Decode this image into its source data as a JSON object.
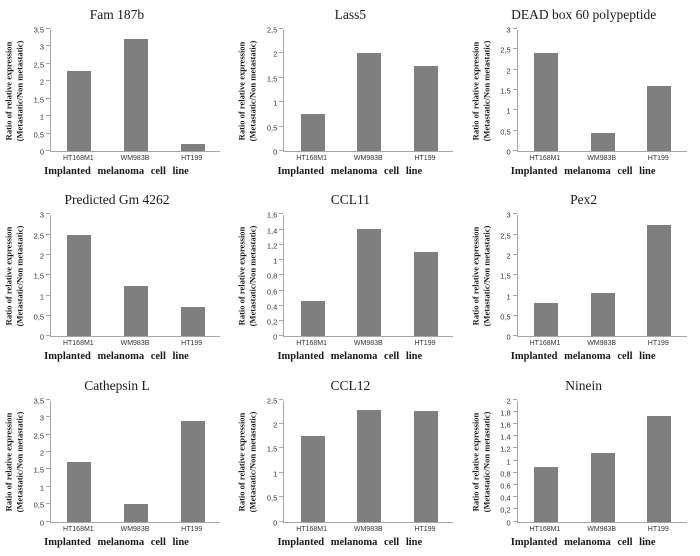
{
  "figure": {
    "layout": "3x3-grid",
    "bar_color": "#7f7f7f",
    "axis_color": "#a6a6a6",
    "decimal_separator": ",",
    "shared_categories": [
      "HT168M1",
      "WM983B",
      "HT199"
    ],
    "shared_xlabel": "Implanted melanoma cell line",
    "shared_ylabel_line1": "Ratio of relative expression",
    "shared_ylabel_line2": "(Metastatic/Non metastatic)"
  },
  "chart_data": [
    {
      "type": "bar",
      "title": "Fam 187b",
      "categories": [
        "HT168M1",
        "WM983B",
        "HT199"
      ],
      "values": [
        2.3,
        3.2,
        0.2
      ],
      "xlabel": "Implanted melanoma cell line",
      "ylabel": "Ratio of relative expression (Metastatic/Non metastatic)",
      "ylim": [
        0,
        3.5
      ],
      "ystep": 0.5,
      "grid": false,
      "legend": "none"
    },
    {
      "type": "bar",
      "title": "Lass5",
      "categories": [
        "HT168M1",
        "WM983B",
        "HT199"
      ],
      "values": [
        0.75,
        2.0,
        1.75
      ],
      "xlabel": "Implanted melanoma cell line",
      "ylabel": "Ratio of relative expression (Metastatic/Non metastatic)",
      "ylim": [
        0,
        2.5
      ],
      "ystep": 0.5,
      "grid": false,
      "legend": "none"
    },
    {
      "type": "bar",
      "title": "DEAD box 60 polypeptide",
      "categories": [
        "HT168M1",
        "WM983B",
        "HT199"
      ],
      "values": [
        2.4,
        0.45,
        1.6
      ],
      "xlabel": "Implanted melanoma cell line",
      "ylabel": "Ratio of relative expression (Metastatic/Non metastatic)",
      "ylim": [
        0,
        3
      ],
      "ystep": 0.5,
      "grid": false,
      "legend": "none"
    },
    {
      "type": "bar",
      "title": "Predicted Gm 4262",
      "categories": [
        "HT168M1",
        "WM983B",
        "HT199"
      ],
      "values": [
        2.5,
        1.25,
        0.72
      ],
      "xlabel": "Implanted melanoma cell line",
      "ylabel": "Ratio of relative expression (Metastatic/Non metastatic)",
      "ylim": [
        0,
        3
      ],
      "ystep": 0.5,
      "grid": false,
      "legend": "none"
    },
    {
      "type": "bar",
      "title": "CCL11",
      "categories": [
        "HT168M1",
        "WM983B",
        "HT199"
      ],
      "values": [
        0.46,
        1.41,
        1.1
      ],
      "xlabel": "Implanted melanoma cell line",
      "ylabel": "Ratio of relative expression (Metastatic/Non metastatic)",
      "ylim": [
        0,
        1.6
      ],
      "ystep": 0.2,
      "grid": false,
      "legend": "none"
    },
    {
      "type": "bar",
      "title": "Pex2",
      "categories": [
        "HT168M1",
        "WM983B",
        "HT199"
      ],
      "values": [
        0.82,
        1.07,
        2.73
      ],
      "xlabel": "Implanted melanoma cell line",
      "ylabel": "Ratio of relative expression (Metastatic/Non metastatic)",
      "ylim": [
        0,
        3
      ],
      "ystep": 0.5,
      "grid": false,
      "legend": "none"
    },
    {
      "type": "bar",
      "title": "Cathepsin L",
      "categories": [
        "HT168M1",
        "WM983B",
        "HT199"
      ],
      "values": [
        1.72,
        0.52,
        2.9
      ],
      "xlabel": "Implanted melanoma cell line",
      "ylabel": "Ratio of relative expression (Metastatic/Non metastatic)",
      "ylim": [
        0,
        3.5
      ],
      "ystep": 0.5,
      "grid": false,
      "legend": "none"
    },
    {
      "type": "bar",
      "title": "CCL12",
      "categories": [
        "HT168M1",
        "WM983B",
        "HT199"
      ],
      "values": [
        1.75,
        2.28,
        2.27
      ],
      "xlabel": "Implanted melanoma cell line",
      "ylabel": "Ratio of relative expression (Metastatic/Non metastatic)",
      "ylim": [
        0,
        2.5
      ],
      "ystep": 0.5,
      "grid": false,
      "legend": "none"
    },
    {
      "type": "bar",
      "title": "Ninein",
      "categories": [
        "HT168M1",
        "WM983B",
        "HT199"
      ],
      "values": [
        0.9,
        1.13,
        1.73
      ],
      "xlabel": "Implanted melanoma cell line",
      "ylabel": "Ratio of relative expression (Metastatic/Non metastatic)",
      "ylim": [
        0,
        2
      ],
      "ystep": 0.2,
      "grid": false,
      "legend": "none"
    }
  ]
}
